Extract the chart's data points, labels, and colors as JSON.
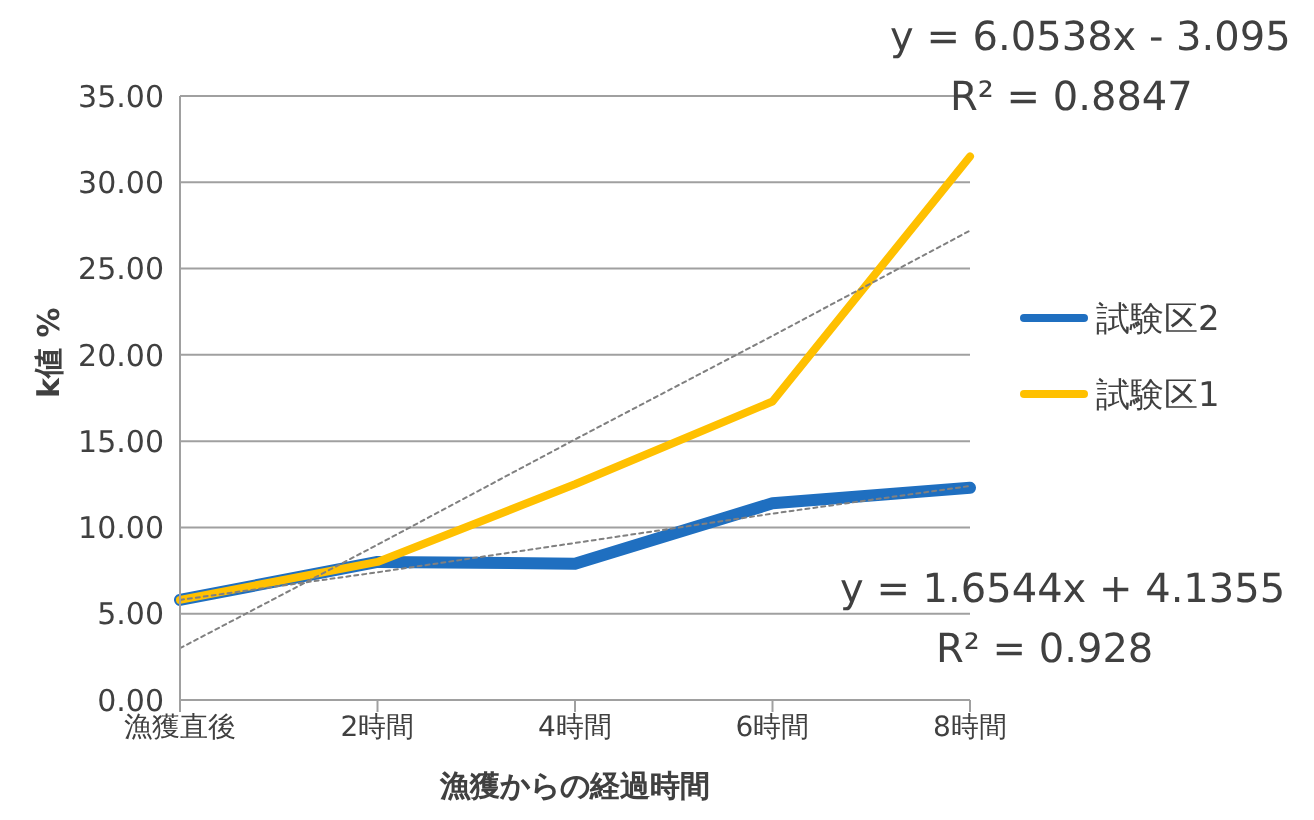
{
  "chart_data": {
    "type": "line",
    "ylabel": "k値 %",
    "xlabel": "漁獲からの経過時間",
    "categories": [
      "漁獲直後",
      "2時間",
      "4時間",
      "6時間",
      "8時間"
    ],
    "series": [
      {
        "name": "試験区2",
        "color": "#1f6fc0",
        "values": [
          5.8,
          8.0,
          7.9,
          11.4,
          12.3
        ]
      },
      {
        "name": "試験区1",
        "color": "#ffc000",
        "values": [
          5.8,
          8.0,
          12.5,
          17.3,
          31.5
        ]
      },
      {
        "type": "line",
        "color": "#808080",
        "line_style": "dotted",
        "values": [
          3.0,
          9.0,
          15.1,
          21.1,
          27.2
        ]
      },
      {
        "type": "line",
        "color": "#808080",
        "line_style": "dotted",
        "values": [
          5.8,
          7.4,
          9.1,
          10.8,
          12.4
        ]
      }
    ],
    "ylim": [
      0,
      35
    ],
    "yticks": [
      {
        "value": 0,
        "label": "0.00"
      },
      {
        "value": 5,
        "label": "5.00"
      },
      {
        "value": 10,
        "label": "10.00"
      },
      {
        "value": 15,
        "label": "15.00"
      },
      {
        "value": 20,
        "label": "20.00"
      },
      {
        "value": 25,
        "label": "25.00"
      },
      {
        "value": 30,
        "label": "30.00"
      },
      {
        "value": 35,
        "label": "35.00"
      }
    ],
    "grid": "y",
    "legend": "right",
    "marker": "none",
    "line_style": "solid",
    "annotations": [
      "y = 6.0538x - 3.095",
      "R² = 0.8847",
      "y = 1.6544x + 4.1355",
      "R² = 0.928"
    ]
  }
}
